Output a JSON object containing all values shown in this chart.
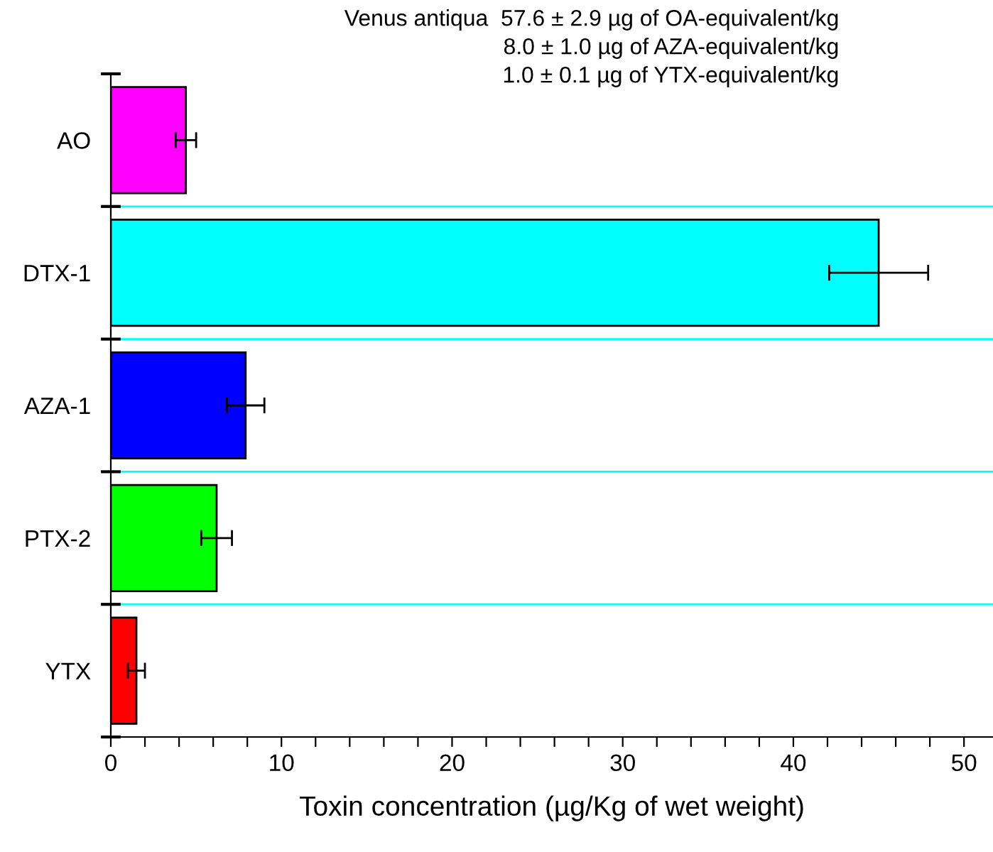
{
  "chart_data": {
    "type": "bar",
    "orientation": "horizontal",
    "categories": [
      "AO",
      "DTX-1",
      "AZA-1",
      "PTX-2",
      "YTX"
    ],
    "values": [
      4.4,
      45.0,
      7.9,
      6.2,
      1.5
    ],
    "errors": [
      0.6,
      2.9,
      1.1,
      0.9,
      0.5
    ],
    "colors": [
      "#ff00ff",
      "#00ffff",
      "#0000ff",
      "#00ff00",
      "#ff0000"
    ],
    "xlabel": "Toxin concentration (µg/Kg of wet weight)",
    "xlim": [
      0,
      51.7
    ],
    "xticks": [
      0,
      {
        "value": 2,
        "label": null
      },
      {
        "value": 4,
        "label": null
      },
      {
        "value": 6,
        "label": null
      },
      {
        "value": 8,
        "label": null
      },
      10,
      {
        "value": 12,
        "label": null
      },
      {
        "value": 14,
        "label": null
      },
      {
        "value": 16,
        "label": null
      },
      {
        "value": 18,
        "label": null
      },
      20,
      {
        "value": 22,
        "label": null
      },
      {
        "value": 24,
        "label": null
      },
      {
        "value": 26,
        "label": null
      },
      {
        "value": 28,
        "label": null
      },
      30,
      {
        "value": 32,
        "label": null
      },
      {
        "value": 34,
        "label": null
      },
      {
        "value": 36,
        "label": null
      },
      {
        "value": 38,
        "label": null
      },
      40,
      {
        "value": 42,
        "label": null
      },
      {
        "value": 44,
        "label": null
      },
      {
        "value": 46,
        "label": null
      },
      {
        "value": 48,
        "label": null
      },
      50
    ],
    "grid": "y",
    "annotations": [
      "Venus antiqua  57.6 ± 2.9 µg of OA-equivalent/kg",
      "8.0 ± 1.0 µg of AZA-equivalent/kg",
      "1.0 ± 0.1 µg of YTX-equivalent/kg"
    ]
  }
}
